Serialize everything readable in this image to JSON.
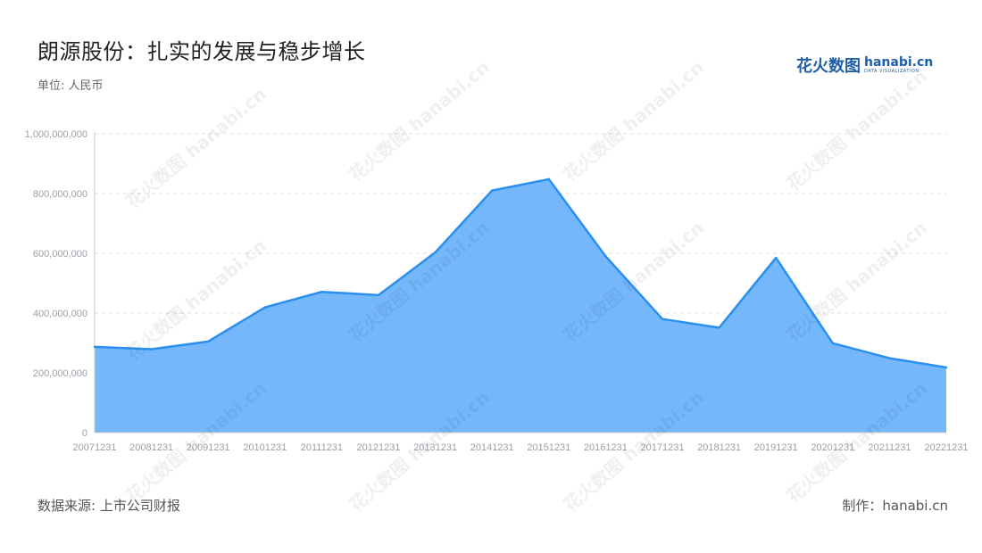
{
  "header": {
    "title": "朗源股份：扎实的发展与稳步增长",
    "unit": "单位: 人民币"
  },
  "logo": {
    "cn": "花火数图",
    "en": "hanabi.cn",
    "sub": "DATA VISUALIZATION"
  },
  "footer": {
    "source": "数据来源: 上市公司财报",
    "credit": "制作：hanabi.cn"
  },
  "colors": {
    "line": "#2b8ff0",
    "area": "#74b8fb",
    "grid": "#dddddd"
  },
  "chart_data": {
    "type": "area",
    "categories": [
      "20071231",
      "20081231",
      "20091231",
      "20101231",
      "20111231",
      "20121231",
      "20131231",
      "20141231",
      "20151231",
      "20161231",
      "20171231",
      "20181231",
      "20191231",
      "20201231",
      "20211231",
      "20221231"
    ],
    "values": [
      287000000,
      279000000,
      305000000,
      419000000,
      471000000,
      460000000,
      603000000,
      810000000,
      848000000,
      590000000,
      380000000,
      351000000,
      585000000,
      299000000,
      249000000,
      218000000
    ],
    "yticks": [
      0,
      200000000,
      400000000,
      600000000,
      800000000,
      1000000000
    ],
    "ytick_labels": [
      "0",
      "200,000,000",
      "400,000,000",
      "600,000,000",
      "800,000,000",
      "1,000,000,000"
    ],
    "ylim": [
      0,
      1000000000
    ],
    "grid": true,
    "legend": "none"
  }
}
